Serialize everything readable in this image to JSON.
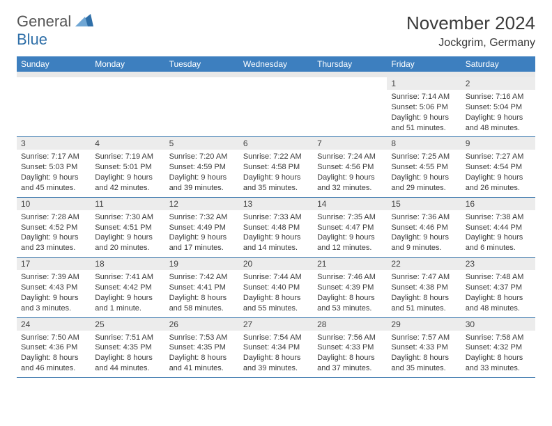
{
  "logo": {
    "general": "General",
    "blue": "Blue"
  },
  "title": "November 2024",
  "location": "Jockgrim, Germany",
  "colors": {
    "header_bg": "#3d7fbf",
    "header_text": "#ffffff",
    "date_bg": "#ececec",
    "border": "#2f6fa8",
    "text": "#3a3a3a"
  },
  "daynames": [
    "Sunday",
    "Monday",
    "Tuesday",
    "Wednesday",
    "Thursday",
    "Friday",
    "Saturday"
  ],
  "weeks": [
    [
      {
        "date": "",
        "sunrise": "",
        "sunset": "",
        "daylight": ""
      },
      {
        "date": "",
        "sunrise": "",
        "sunset": "",
        "daylight": ""
      },
      {
        "date": "",
        "sunrise": "",
        "sunset": "",
        "daylight": ""
      },
      {
        "date": "",
        "sunrise": "",
        "sunset": "",
        "daylight": ""
      },
      {
        "date": "",
        "sunrise": "",
        "sunset": "",
        "daylight": ""
      },
      {
        "date": "1",
        "sunrise": "Sunrise: 7:14 AM",
        "sunset": "Sunset: 5:06 PM",
        "daylight": "Daylight: 9 hours and 51 minutes."
      },
      {
        "date": "2",
        "sunrise": "Sunrise: 7:16 AM",
        "sunset": "Sunset: 5:04 PM",
        "daylight": "Daylight: 9 hours and 48 minutes."
      }
    ],
    [
      {
        "date": "3",
        "sunrise": "Sunrise: 7:17 AM",
        "sunset": "Sunset: 5:03 PM",
        "daylight": "Daylight: 9 hours and 45 minutes."
      },
      {
        "date": "4",
        "sunrise": "Sunrise: 7:19 AM",
        "sunset": "Sunset: 5:01 PM",
        "daylight": "Daylight: 9 hours and 42 minutes."
      },
      {
        "date": "5",
        "sunrise": "Sunrise: 7:20 AM",
        "sunset": "Sunset: 4:59 PM",
        "daylight": "Daylight: 9 hours and 39 minutes."
      },
      {
        "date": "6",
        "sunrise": "Sunrise: 7:22 AM",
        "sunset": "Sunset: 4:58 PM",
        "daylight": "Daylight: 9 hours and 35 minutes."
      },
      {
        "date": "7",
        "sunrise": "Sunrise: 7:24 AM",
        "sunset": "Sunset: 4:56 PM",
        "daylight": "Daylight: 9 hours and 32 minutes."
      },
      {
        "date": "8",
        "sunrise": "Sunrise: 7:25 AM",
        "sunset": "Sunset: 4:55 PM",
        "daylight": "Daylight: 9 hours and 29 minutes."
      },
      {
        "date": "9",
        "sunrise": "Sunrise: 7:27 AM",
        "sunset": "Sunset: 4:54 PM",
        "daylight": "Daylight: 9 hours and 26 minutes."
      }
    ],
    [
      {
        "date": "10",
        "sunrise": "Sunrise: 7:28 AM",
        "sunset": "Sunset: 4:52 PM",
        "daylight": "Daylight: 9 hours and 23 minutes."
      },
      {
        "date": "11",
        "sunrise": "Sunrise: 7:30 AM",
        "sunset": "Sunset: 4:51 PM",
        "daylight": "Daylight: 9 hours and 20 minutes."
      },
      {
        "date": "12",
        "sunrise": "Sunrise: 7:32 AM",
        "sunset": "Sunset: 4:49 PM",
        "daylight": "Daylight: 9 hours and 17 minutes."
      },
      {
        "date": "13",
        "sunrise": "Sunrise: 7:33 AM",
        "sunset": "Sunset: 4:48 PM",
        "daylight": "Daylight: 9 hours and 14 minutes."
      },
      {
        "date": "14",
        "sunrise": "Sunrise: 7:35 AM",
        "sunset": "Sunset: 4:47 PM",
        "daylight": "Daylight: 9 hours and 12 minutes."
      },
      {
        "date": "15",
        "sunrise": "Sunrise: 7:36 AM",
        "sunset": "Sunset: 4:46 PM",
        "daylight": "Daylight: 9 hours and 9 minutes."
      },
      {
        "date": "16",
        "sunrise": "Sunrise: 7:38 AM",
        "sunset": "Sunset: 4:44 PM",
        "daylight": "Daylight: 9 hours and 6 minutes."
      }
    ],
    [
      {
        "date": "17",
        "sunrise": "Sunrise: 7:39 AM",
        "sunset": "Sunset: 4:43 PM",
        "daylight": "Daylight: 9 hours and 3 minutes."
      },
      {
        "date": "18",
        "sunrise": "Sunrise: 7:41 AM",
        "sunset": "Sunset: 4:42 PM",
        "daylight": "Daylight: 9 hours and 1 minute."
      },
      {
        "date": "19",
        "sunrise": "Sunrise: 7:42 AM",
        "sunset": "Sunset: 4:41 PM",
        "daylight": "Daylight: 8 hours and 58 minutes."
      },
      {
        "date": "20",
        "sunrise": "Sunrise: 7:44 AM",
        "sunset": "Sunset: 4:40 PM",
        "daylight": "Daylight: 8 hours and 55 minutes."
      },
      {
        "date": "21",
        "sunrise": "Sunrise: 7:46 AM",
        "sunset": "Sunset: 4:39 PM",
        "daylight": "Daylight: 8 hours and 53 minutes."
      },
      {
        "date": "22",
        "sunrise": "Sunrise: 7:47 AM",
        "sunset": "Sunset: 4:38 PM",
        "daylight": "Daylight: 8 hours and 51 minutes."
      },
      {
        "date": "23",
        "sunrise": "Sunrise: 7:48 AM",
        "sunset": "Sunset: 4:37 PM",
        "daylight": "Daylight: 8 hours and 48 minutes."
      }
    ],
    [
      {
        "date": "24",
        "sunrise": "Sunrise: 7:50 AM",
        "sunset": "Sunset: 4:36 PM",
        "daylight": "Daylight: 8 hours and 46 minutes."
      },
      {
        "date": "25",
        "sunrise": "Sunrise: 7:51 AM",
        "sunset": "Sunset: 4:35 PM",
        "daylight": "Daylight: 8 hours and 44 minutes."
      },
      {
        "date": "26",
        "sunrise": "Sunrise: 7:53 AM",
        "sunset": "Sunset: 4:35 PM",
        "daylight": "Daylight: 8 hours and 41 minutes."
      },
      {
        "date": "27",
        "sunrise": "Sunrise: 7:54 AM",
        "sunset": "Sunset: 4:34 PM",
        "daylight": "Daylight: 8 hours and 39 minutes."
      },
      {
        "date": "28",
        "sunrise": "Sunrise: 7:56 AM",
        "sunset": "Sunset: 4:33 PM",
        "daylight": "Daylight: 8 hours and 37 minutes."
      },
      {
        "date": "29",
        "sunrise": "Sunrise: 7:57 AM",
        "sunset": "Sunset: 4:33 PM",
        "daylight": "Daylight: 8 hours and 35 minutes."
      },
      {
        "date": "30",
        "sunrise": "Sunrise: 7:58 AM",
        "sunset": "Sunset: 4:32 PM",
        "daylight": "Daylight: 8 hours and 33 minutes."
      }
    ]
  ]
}
